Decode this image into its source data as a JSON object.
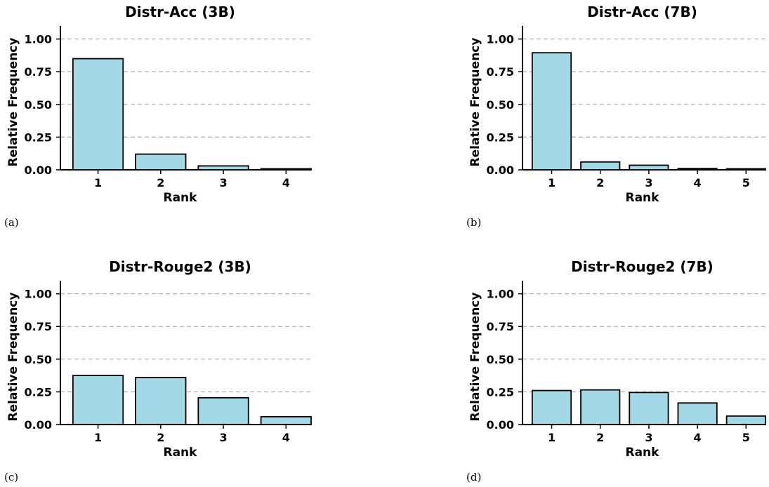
{
  "colors": {
    "bar_fill": "#a3d8e6",
    "bar_edge": "#000000",
    "grid": "#b0b0b0",
    "axis": "#000000",
    "text": "#000000"
  },
  "chart_data": [
    {
      "type": "bar",
      "panel_label": "(a)",
      "title": "Distr-Acc (3B)",
      "xlabel": "Rank",
      "ylabel": "Relative Frequency",
      "categories": [
        "1",
        "2",
        "3",
        "4"
      ],
      "values": [
        0.85,
        0.12,
        0.03,
        0.005
      ],
      "ylim": [
        0,
        1.1
      ],
      "yticks": [
        "0.00",
        "0.25",
        "0.50",
        "0.75",
        "1.00"
      ],
      "grid": "y, dashed"
    },
    {
      "type": "bar",
      "panel_label": "(b)",
      "title": "Distr-Acc (7B)",
      "xlabel": "Rank",
      "ylabel": "Relative Frequency",
      "categories": [
        "1",
        "2",
        "3",
        "4",
        "5"
      ],
      "values": [
        0.895,
        0.06,
        0.035,
        0.01,
        0.003
      ],
      "ylim": [
        0,
        1.1
      ],
      "yticks": [
        "0.00",
        "0.25",
        "0.50",
        "0.75",
        "1.00"
      ],
      "grid": "y, dashed"
    },
    {
      "type": "bar",
      "panel_label": "(c)",
      "title": "Distr-Rouge2 (3B)",
      "xlabel": "Rank",
      "ylabel": "Relative Frequency",
      "categories": [
        "1",
        "2",
        "3",
        "4"
      ],
      "values": [
        0.375,
        0.36,
        0.205,
        0.06
      ],
      "ylim": [
        0,
        1.1
      ],
      "yticks": [
        "0.00",
        "0.25",
        "0.50",
        "0.75",
        "1.00"
      ],
      "grid": "y, dashed"
    },
    {
      "type": "bar",
      "panel_label": "(d)",
      "title": "Distr-Rouge2 (7B)",
      "xlabel": "Rank",
      "ylabel": "Relative Frequency",
      "categories": [
        "1",
        "2",
        "3",
        "4",
        "5"
      ],
      "values": [
        0.26,
        0.265,
        0.245,
        0.165,
        0.065
      ],
      "ylim": [
        0,
        1.1
      ],
      "yticks": [
        "0.00",
        "0.25",
        "0.50",
        "0.75",
        "1.00"
      ],
      "grid": "y, dashed"
    }
  ]
}
